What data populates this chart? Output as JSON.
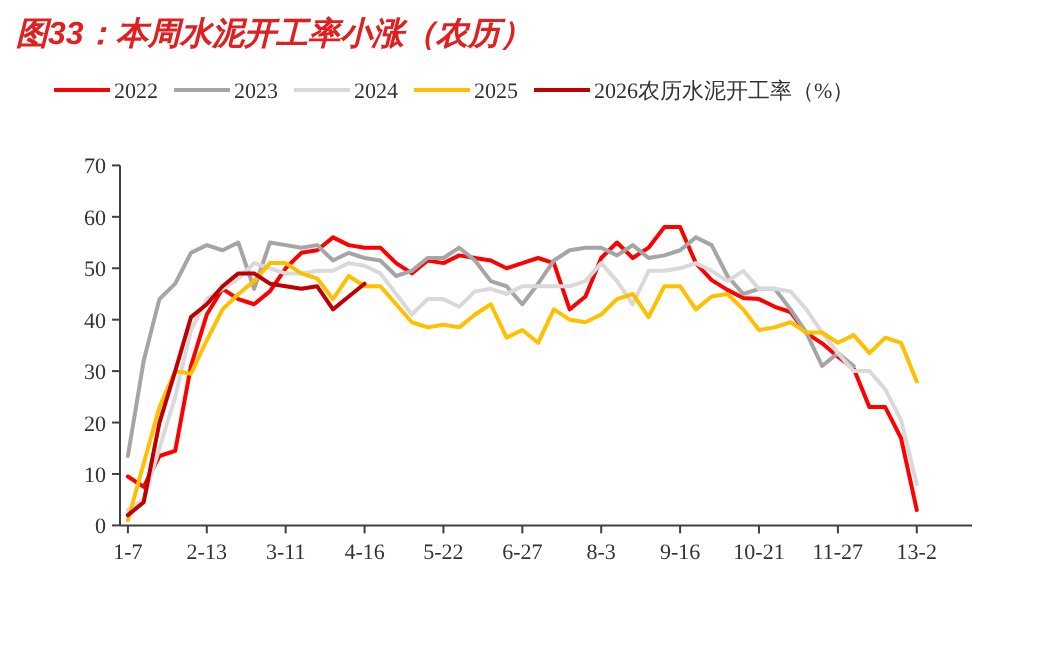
{
  "chart_data": {
    "type": "line",
    "title": "图33：本周水泥开工率小涨（农历）",
    "categories": [
      "1-7",
      null,
      null,
      null,
      null,
      "2-13",
      null,
      null,
      null,
      null,
      "3-11",
      null,
      null,
      null,
      null,
      "4-16",
      null,
      null,
      null,
      null,
      "5-22",
      null,
      null,
      null,
      null,
      "6-27",
      null,
      null,
      null,
      null,
      "8-3",
      null,
      null,
      null,
      null,
      "9-16",
      null,
      null,
      null,
      null,
      "10-21",
      null,
      null,
      null,
      null,
      "11-27",
      null,
      null,
      null,
      null,
      "13-2",
      null,
      null,
      null
    ],
    "ylim": [
      0,
      70
    ],
    "yticks": [
      0,
      10,
      20,
      30,
      40,
      50,
      60,
      70
    ],
    "grid": false,
    "legend": "top",
    "marker": "none",
    "line_style": "solid",
    "series": [
      {
        "name": "2022",
        "color": "#ff0000",
        "values": [
          9.5,
          7.5,
          13.5,
          14.5,
          31,
          41,
          46,
          44,
          43,
          45.5,
          50,
          53,
          53.5,
          56,
          54.5,
          54,
          54,
          51,
          49,
          51.5,
          51,
          52.5,
          52,
          51.5,
          50,
          51,
          52,
          51,
          42,
          44.5,
          52,
          55,
          52,
          54,
          58,
          58,
          51,
          47.7,
          45.8,
          44.2,
          44,
          42.5,
          41.5,
          37.4,
          35.4,
          32.8,
          30.5,
          23,
          23,
          17,
          3,
          null,
          null,
          null
        ]
      },
      {
        "name": "2023",
        "color": "#a5a5a5",
        "values": [
          13.5,
          32,
          44,
          47,
          53,
          54.5,
          53.5,
          55,
          46,
          55,
          54.5,
          54,
          54.5,
          51.5,
          53,
          52,
          51.5,
          48.5,
          49.5,
          52,
          52,
          54,
          51.5,
          47.5,
          46.5,
          43,
          47,
          51.5,
          53.5,
          54,
          54,
          52.5,
          54.5,
          52,
          52.5,
          53.5,
          56,
          54.5,
          48.5,
          45,
          46,
          46,
          42,
          37.5,
          31,
          33.5,
          31,
          null,
          null,
          null,
          null,
          null,
          null,
          null
        ]
      },
      {
        "name": "2024",
        "color": "#d9d9d9",
        "values": [
          3,
          5,
          15,
          25,
          38,
          44,
          46,
          48,
          51,
          50,
          49,
          49,
          49.5,
          49.5,
          51,
          50.5,
          49,
          45,
          41,
          44,
          44,
          42.5,
          45.5,
          46,
          45,
          46.5,
          46.5,
          46.5,
          46.5,
          47.5,
          51,
          47.5,
          43,
          49.5,
          49.5,
          50,
          51,
          49.5,
          47.5,
          49.5,
          46,
          46,
          45.5,
          42,
          37.5,
          33.5,
          30,
          30,
          26.5,
          20.5,
          8,
          null,
          null,
          null
        ]
      },
      {
        "name": "2025",
        "color": "#ffc000",
        "values": [
          1,
          12,
          23,
          30,
          29.5,
          36,
          42,
          45,
          47.5,
          51,
          51,
          49,
          48,
          44,
          48.5,
          46.5,
          46.5,
          43,
          39.5,
          38.5,
          39,
          38.5,
          41,
          43,
          36.5,
          38,
          35.5,
          42,
          40,
          39.5,
          41,
          44,
          45,
          40.5,
          46.5,
          46.5,
          42,
          44.5,
          45,
          42,
          38,
          38.5,
          39.5,
          37.5,
          37.5,
          35.5,
          37,
          33.5,
          36.5,
          35.5,
          28,
          null,
          null,
          null
        ]
      },
      {
        "name": "2026农历水泥开工率（%）",
        "color": "#c00000",
        "values": [
          2,
          4.5,
          20,
          30,
          40.5,
          43,
          46.5,
          49,
          49,
          47,
          46.5,
          46,
          46.5,
          42,
          44.5,
          47,
          null,
          null,
          null,
          null,
          null,
          null,
          null,
          null,
          null,
          null,
          null,
          null,
          null,
          null,
          null,
          null,
          null,
          null,
          null,
          null,
          null,
          null,
          null,
          null,
          null,
          null,
          null,
          null,
          null,
          null,
          null,
          null,
          null,
          null,
          null,
          null,
          null,
          null
        ]
      }
    ]
  }
}
